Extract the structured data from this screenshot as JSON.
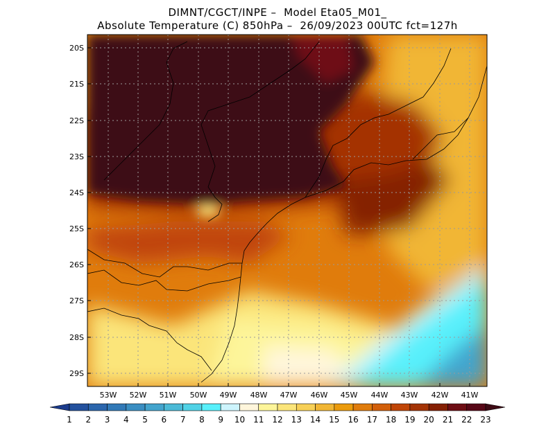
{
  "title": {
    "line1": "DIMNT/CGCT/INPE –  Model Eta05_M01_",
    "line2": "Absolute Temperature (C) 850hPa –  26/09/2023 00UTC fct=127h"
  },
  "lat_labels": [
    "20S",
    "21S",
    "22S",
    "23S",
    "24S",
    "25S",
    "26S",
    "27S",
    "28S",
    "29S"
  ],
  "lon_labels": [
    "53W",
    "52W",
    "51W",
    "50W",
    "49W",
    "48W",
    "47W",
    "46W",
    "45W",
    "44W",
    "43W",
    "42W",
    "41W"
  ],
  "colorbar": {
    "labels": [
      "1",
      "2",
      "3",
      "4",
      "5",
      "6",
      "7",
      "8",
      "9",
      "10",
      "11",
      "12",
      "13",
      "14",
      "15",
      "16",
      "17",
      "18",
      "19",
      "20",
      "21",
      "22",
      "23"
    ],
    "colors": [
      "#1b3b8c",
      "#23519e",
      "#2b66ad",
      "#3179b7",
      "#3a8ec2",
      "#43a4cd",
      "#4bbad7",
      "#50d2e6",
      "#58f0fb",
      "#cdf4fd",
      "#fff6dc",
      "#fdf59a",
      "#fbe57a",
      "#f7d057",
      "#f1b634",
      "#eb9b0c",
      "#e07c0c",
      "#d25f0a",
      "#c04507",
      "#a43305",
      "#852003",
      "#6e0d14",
      "#570716",
      "#3d0a14"
    ]
  }
}
